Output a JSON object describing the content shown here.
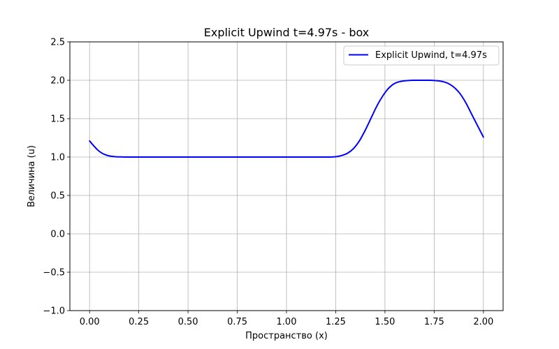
{
  "chart_data": {
    "type": "line",
    "title": "Explicit Upwind t=4.97s - box",
    "xlabel": "Пространство (x)",
    "ylabel": "Величина (u)",
    "xlim": [
      -0.1,
      2.1
    ],
    "ylim": [
      -1.0,
      2.5
    ],
    "x_ticks": [
      0.0,
      0.25,
      0.5,
      0.75,
      1.0,
      1.25,
      1.5,
      1.75,
      2.0
    ],
    "x_tick_labels": [
      "0.00",
      "0.25",
      "0.50",
      "0.75",
      "1.00",
      "1.25",
      "1.50",
      "1.75",
      "2.00"
    ],
    "y_ticks": [
      -1.0,
      -0.5,
      0.0,
      0.5,
      1.0,
      1.5,
      2.0,
      2.5
    ],
    "y_tick_labels": [
      "−1.0",
      "−0.5",
      "0.0",
      "0.5",
      "1.0",
      "1.5",
      "2.0",
      "2.5"
    ],
    "grid": true,
    "legend_position": "upper right",
    "series": [
      {
        "name": "Explicit Upwind, t=4.97s",
        "color": "#0000ff",
        "x": [
          0.0,
          0.02,
          0.04,
          0.06,
          0.08,
          0.1,
          0.13,
          0.16,
          0.2,
          0.3,
          0.5,
          0.75,
          1.0,
          1.1,
          1.2,
          1.25,
          1.28,
          1.31,
          1.34,
          1.37,
          1.4,
          1.43,
          1.46,
          1.49,
          1.52,
          1.55,
          1.58,
          1.61,
          1.64,
          1.67,
          1.7,
          1.73,
          1.76,
          1.79,
          1.82,
          1.85,
          1.88,
          1.91,
          1.94,
          1.97,
          2.0
        ],
        "y": [
          1.21,
          1.15,
          1.095,
          1.055,
          1.03,
          1.015,
          1.005,
          1.002,
          1.0,
          1.0,
          1.0,
          1.0,
          1.0,
          1.0,
          1.0,
          1.005,
          1.02,
          1.05,
          1.11,
          1.21,
          1.35,
          1.51,
          1.67,
          1.8,
          1.9,
          1.96,
          1.985,
          1.995,
          2.0,
          2.0,
          2.0,
          2.0,
          1.995,
          1.985,
          1.96,
          1.91,
          1.83,
          1.71,
          1.56,
          1.41,
          1.26
        ]
      }
    ]
  }
}
